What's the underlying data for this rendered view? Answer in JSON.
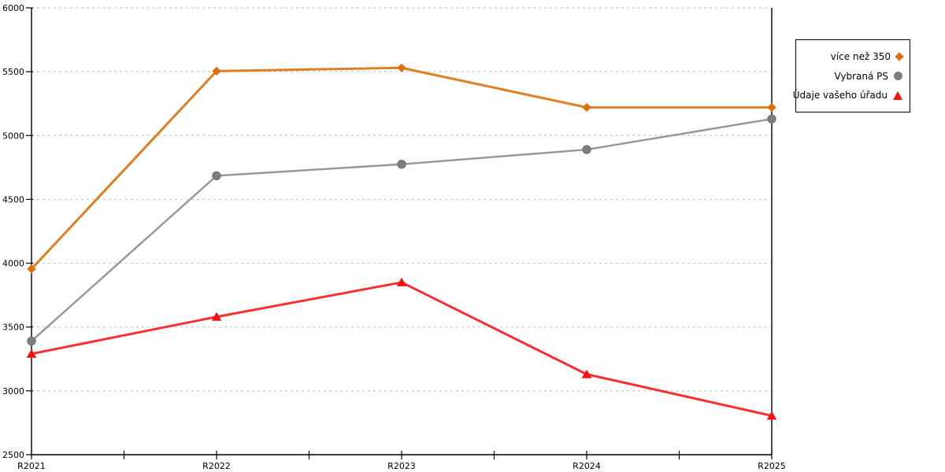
{
  "chart_data": {
    "type": "line",
    "title": "",
    "xlabel": "",
    "ylabel": "",
    "categories": [
      "R2021",
      "R2022",
      "R2023",
      "R2024",
      "R2025"
    ],
    "series": [
      {
        "name": "více než 350",
        "marker": "diamond",
        "color": "#DD720D",
        "line_color": "#E07E22",
        "line_width": 3,
        "values": [
          3955,
          5505,
          5530,
          5220,
          5220
        ]
      },
      {
        "name": "Vybraná PS",
        "marker": "circle",
        "color": "#7D7D7D",
        "line_color": "#969696",
        "line_width": 2.4,
        "values": [
          3390,
          4685,
          4775,
          4890,
          5130
        ]
      },
      {
        "name": "Údaje vašeho úřadu",
        "marker": "triangle",
        "color": "#FA0F0F",
        "line_color": "#F63030",
        "line_width": 3,
        "values": [
          3290,
          3580,
          3850,
          3130,
          2805
        ]
      }
    ],
    "ylim": [
      2500,
      6000
    ],
    "y_step": 500,
    "y_tick_labels": [
      "2500",
      "3000",
      "3500",
      "4000",
      "4500",
      "5000",
      "5500",
      "6000"
    ],
    "x_tick_labels": [
      "R2021",
      "R2022",
      "R2023",
      "R2024",
      "R2025"
    ],
    "grid": "horizontal-dashed",
    "grid_color": "#C7C7C7",
    "axis_color": "#000000",
    "legend_position": "top-right-outside",
    "legend_border_color": "#000000",
    "background_color": "#FFFFFF"
  }
}
